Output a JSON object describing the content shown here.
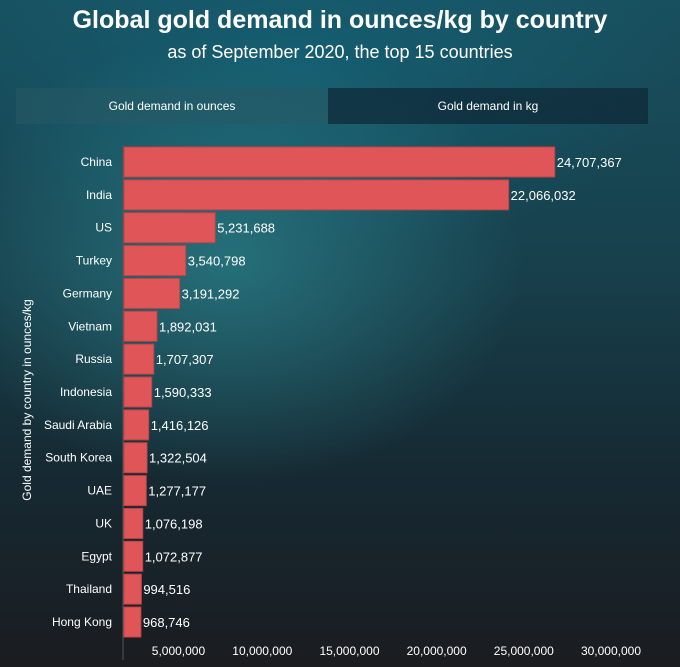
{
  "title": "Global gold demand in ounces/kg by country",
  "subtitle": "as of September 2020, the top 15 countries",
  "tabs": [
    {
      "label": "Gold demand in ounces",
      "active": true
    },
    {
      "label": "Gold demand in kg",
      "active": false
    }
  ],
  "colors": {
    "bar": "#e05558"
  },
  "chart_data": {
    "type": "bar",
    "orientation": "horizontal",
    "title": "Global gold demand in ounces/kg by country",
    "subtitle": "as of September 2020, the top 15 countries",
    "ylabel": "Gold demand by country in ounces/kg",
    "xlabel": "",
    "categories": [
      "China",
      "India",
      "US",
      "Turkey",
      "Germany",
      "Vietnam",
      "Russia",
      "Indonesia",
      "Saudi Arabia",
      "South Korea",
      "UAE",
      "UK",
      "Egypt",
      "Thailand",
      "Hong Kong"
    ],
    "values": [
      24707367,
      22066032,
      5231688,
      3540798,
      3191292,
      1892031,
      1707307,
      1590333,
      1416126,
      1322504,
      1277177,
      1076198,
      1072877,
      994516,
      968746
    ],
    "data_labels": [
      "24,707,367",
      "22,066,032",
      "5,231,688",
      "3,540,798",
      "3,191,292",
      "1,892,031",
      "1,707,307",
      "1,590,333",
      "1,416,126",
      "1,322,504",
      "1,277,177",
      "1,076,198",
      "1,072,877",
      "994,516",
      "968,746"
    ],
    "xticks": [
      5000000,
      10000000,
      15000000,
      20000000,
      25000000,
      30000000
    ],
    "xtick_labels": [
      "5,000,000",
      "10,000,000",
      "15,000,000",
      "20,000,000",
      "25,000,000",
      "30,000,000"
    ],
    "xlim": [
      0,
      30000000
    ],
    "grid": false,
    "legend": "none"
  }
}
